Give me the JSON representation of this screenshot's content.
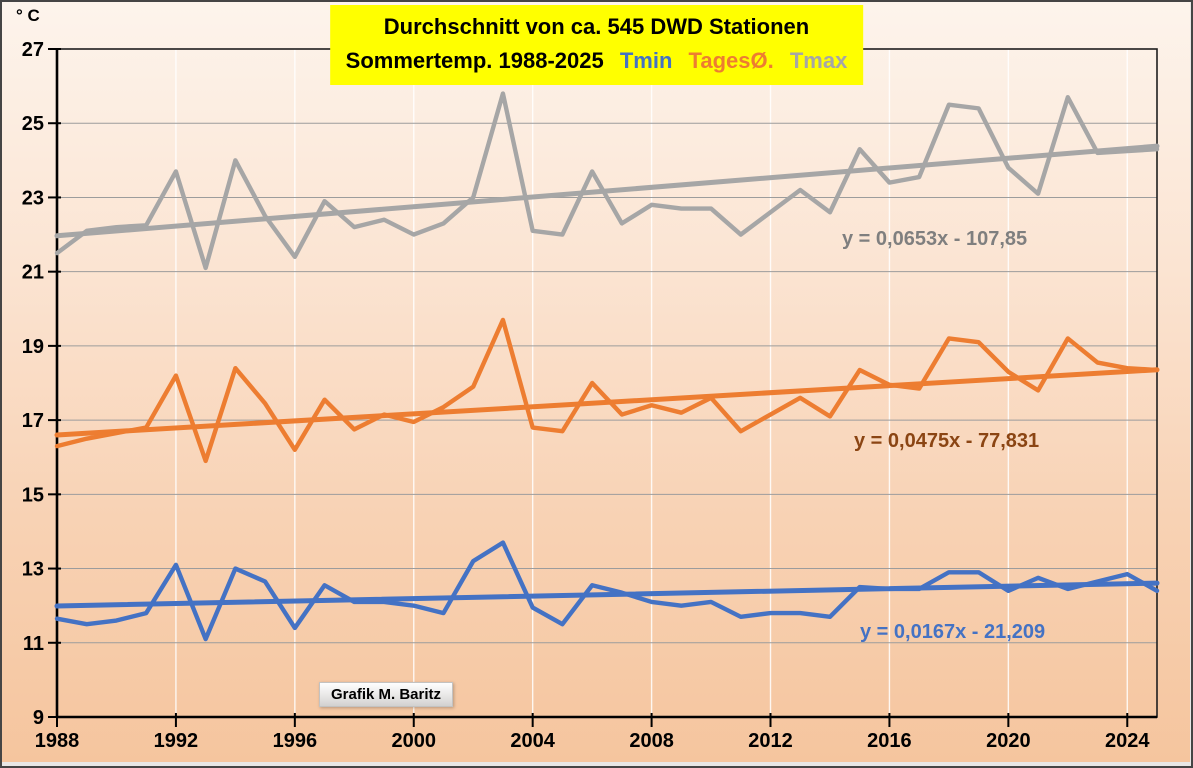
{
  "chart_data": {
    "type": "line",
    "title_line1": "Durchschnitt von ca. 545 DWD Stationen",
    "title_line2_prefix": "Sommertemp. 1988-2025",
    "title_legend": [
      {
        "text": "Tmin",
        "color": "#4472C4"
      },
      {
        "text": "TagesØ.",
        "color": "#ED7D31"
      },
      {
        "text": "Tmax",
        "color": "#A6A6A6"
      }
    ],
    "unit_label": "° C",
    "footer_badge": "Grafik M. Baritz",
    "grid": true,
    "xlim": [
      1988,
      2025
    ],
    "ylim": [
      9,
      27
    ],
    "x_ticks": [
      1988,
      1992,
      1996,
      2000,
      2004,
      2008,
      2012,
      2016,
      2020,
      2024
    ],
    "y_ticks": [
      9,
      11,
      13,
      15,
      17,
      19,
      21,
      23,
      25,
      27
    ],
    "x": [
      1988,
      1989,
      1990,
      1991,
      1992,
      1993,
      1994,
      1995,
      1996,
      1997,
      1998,
      1999,
      2000,
      2001,
      2002,
      2003,
      2004,
      2005,
      2006,
      2007,
      2008,
      2009,
      2010,
      2011,
      2012,
      2013,
      2014,
      2015,
      2016,
      2017,
      2018,
      2019,
      2020,
      2021,
      2022,
      2023,
      2024,
      2025
    ],
    "series": [
      {
        "name": "Tmin",
        "color": "#4472C4",
        "values": [
          11.65,
          11.5,
          11.6,
          11.8,
          13.1,
          11.1,
          13.0,
          12.65,
          11.4,
          12.55,
          12.1,
          12.1,
          12.0,
          11.8,
          13.2,
          13.7,
          11.95,
          11.5,
          12.55,
          12.35,
          12.1,
          12.0,
          12.1,
          11.7,
          11.8,
          11.8,
          11.7,
          12.5,
          12.45,
          12.45,
          12.9,
          12.9,
          12.4,
          12.75,
          12.45,
          12.65,
          12.85,
          12.4
        ],
        "trend": {
          "slope": 0.0167,
          "intercept": -21.209,
          "equation": "y = 0,0167x - 21,209",
          "eq_color": "#4472C4"
        }
      },
      {
        "name": "TagesØ",
        "color": "#ED7D31",
        "values": [
          16.3,
          16.5,
          16.65,
          16.8,
          18.2,
          15.9,
          18.4,
          17.45,
          16.2,
          17.55,
          16.75,
          17.15,
          16.95,
          17.35,
          17.9,
          19.7,
          16.8,
          16.7,
          18.0,
          17.15,
          17.4,
          17.2,
          17.6,
          16.7,
          17.15,
          17.6,
          17.1,
          18.35,
          17.95,
          17.85,
          19.2,
          19.1,
          18.3,
          17.8,
          19.2,
          18.55,
          18.4,
          18.35
        ],
        "trend": {
          "slope": 0.0475,
          "intercept": -77.831,
          "equation": "y = 0,0475x - 77,831",
          "eq_color": "#8B4513"
        }
      },
      {
        "name": "Tmax",
        "color": "#A6A6A6",
        "values": [
          21.5,
          22.1,
          22.2,
          22.25,
          23.7,
          21.1,
          24.0,
          22.5,
          21.4,
          22.9,
          22.2,
          22.4,
          22.0,
          22.3,
          23.0,
          25.8,
          22.1,
          22.0,
          23.7,
          22.3,
          22.8,
          22.7,
          22.7,
          22.0,
          22.6,
          23.2,
          22.6,
          24.3,
          23.4,
          23.55,
          25.5,
          25.4,
          23.8,
          23.1,
          25.7,
          24.2,
          24.25,
          24.3
        ],
        "trend": {
          "slope": 0.0653,
          "intercept": -107.85,
          "equation": "y = 0,0653x - 107,85",
          "eq_color": "#7F7F7F"
        }
      }
    ]
  }
}
